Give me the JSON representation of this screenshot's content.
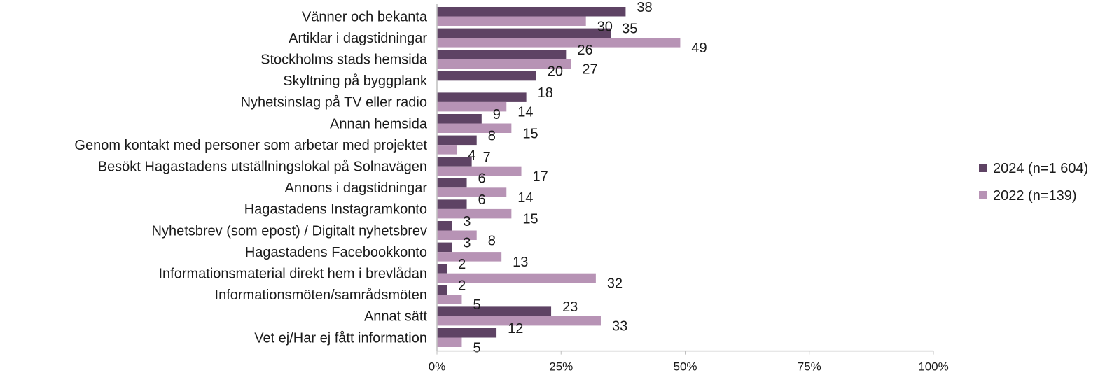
{
  "chart_data": {
    "type": "bar",
    "orientation": "horizontal",
    "categories": [
      "Vänner och bekanta",
      "Artiklar i dagstidningar",
      "Stockholms stads hemsida",
      "Skyltning på byggplank",
      "Nyhetsinslag på TV eller radio",
      "Annan hemsida",
      "Genom kontakt med personer som arbetar med projektet",
      "Besökt Hagastadens utställningslokal på Solnavägen",
      "Annons i dagstidningar",
      "Hagastadens Instagramkonto",
      "Nyhetsbrev (som epost) / Digitalt nyhetsbrev",
      "Hagastadens Facebookkonto",
      "Informationsmaterial direkt hem i brevlådan",
      "Informationsmöten/samrådsmöten",
      "Annat sätt",
      "Vet ej/Har ej fått information"
    ],
    "series": [
      {
        "name": "2024 (n=1 604)",
        "color": "#5e4364",
        "values": [
          38,
          35,
          26,
          20,
          18,
          9,
          8,
          7,
          6,
          6,
          3,
          3,
          2,
          2,
          23,
          12
        ]
      },
      {
        "name": "2022 (n=139)",
        "color": "#b793b5",
        "values": [
          30,
          49,
          27,
          null,
          14,
          15,
          4,
          17,
          14,
          15,
          8,
          13,
          32,
          5,
          33,
          5
        ]
      }
    ],
    "xlim": [
      0,
      100
    ],
    "x_ticks": [
      "0%",
      "25%",
      "50%",
      "75%",
      "100%"
    ],
    "x_tick_values": [
      0,
      25,
      50,
      75,
      100
    ],
    "legend_position": "right",
    "grid": false
  }
}
